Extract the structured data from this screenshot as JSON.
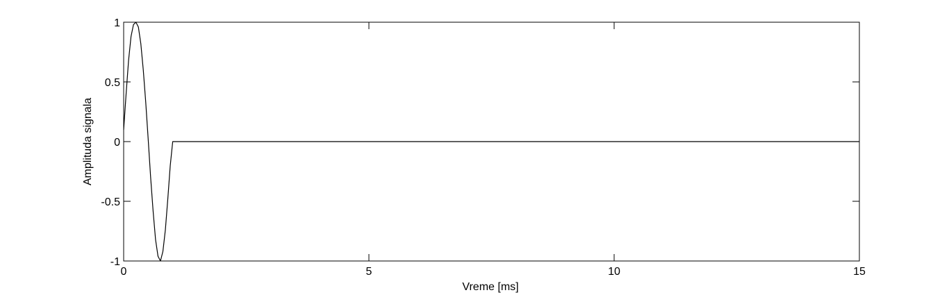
{
  "chart_data": {
    "type": "line",
    "title": "",
    "xlabel": "Vreme [ms]",
    "ylabel": "Amplituda signala",
    "xlim": [
      0,
      15
    ],
    "ylim": [
      -1,
      1
    ],
    "xticks": [
      0,
      5,
      10,
      15
    ],
    "xtick_labels": [
      "0",
      "5",
      "10",
      "15"
    ],
    "yticks": [
      -1,
      -0.5,
      0,
      0.5,
      1
    ],
    "ytick_labels": [
      "-1",
      "-0.5",
      "0",
      "0.5",
      "1"
    ],
    "grid": false,
    "line_color": "#000000",
    "series": [
      {
        "x": [
          0,
          0.05,
          0.1,
          0.15,
          0.2,
          0.25,
          0.3,
          0.35,
          0.4,
          0.45,
          0.5,
          0.55,
          0.6,
          0.65,
          0.7,
          0.75,
          0.8,
          0.85,
          0.9,
          0.95,
          1.0,
          15
        ],
        "y": [
          0.1,
          0.4,
          0.68,
          0.88,
          0.98,
          1.0,
          0.96,
          0.82,
          0.6,
          0.33,
          0.02,
          -0.3,
          -0.58,
          -0.82,
          -0.96,
          -1.0,
          -0.92,
          -0.74,
          -0.48,
          -0.2,
          0,
          0
        ]
      }
    ]
  }
}
